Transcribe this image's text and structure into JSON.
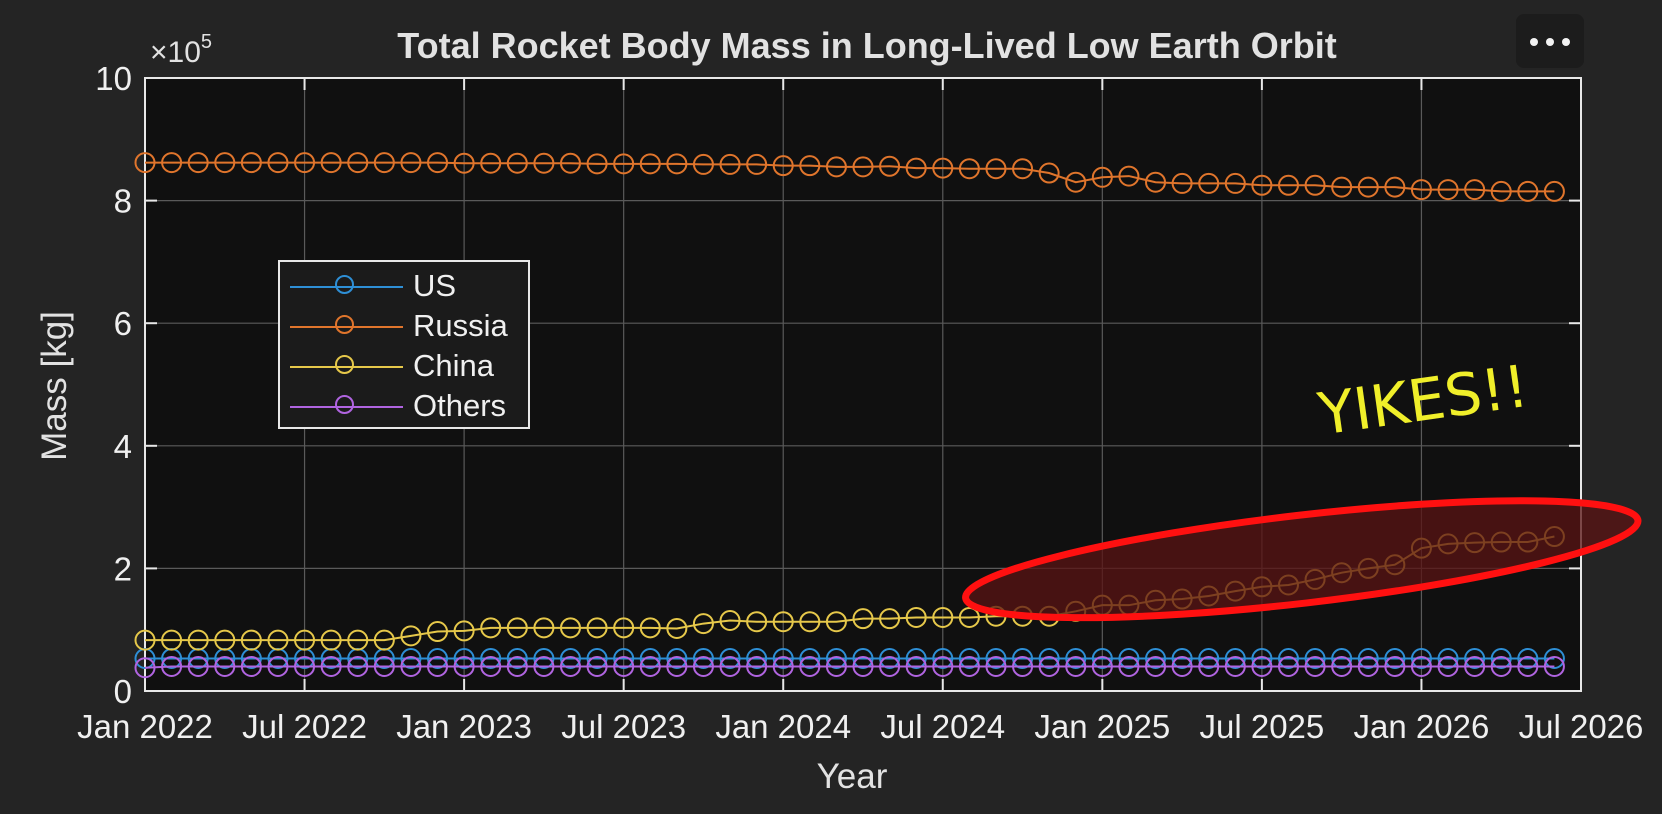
{
  "menu": {
    "icon": "more-horizontal-icon"
  },
  "chart_data": {
    "type": "line",
    "title": "Total Rocket Body Mass in Long-Lived Low Earth Orbit",
    "xlabel": "Year",
    "ylabel": "Mass [kg]",
    "y_exponent_label": "×10",
    "y_exponent_power": "5",
    "x_tick_labels": [
      "Jan 2022",
      "Jul 2022",
      "Jan 2023",
      "Jul 2023",
      "Jan 2024",
      "Jul 2024",
      "Jan 2025",
      "Jul 2025",
      "Jan 2026",
      "Jul 2026"
    ],
    "x_ticks": [
      "2022-01",
      "2022-07",
      "2023-01",
      "2023-07",
      "2024-01",
      "2024-07",
      "2025-01",
      "2025-07",
      "2026-01",
      "2026-07"
    ],
    "y_tick_labels": [
      "0",
      "2",
      "4",
      "6",
      "8",
      "10"
    ],
    "xlim": [
      "2022-01",
      "2026-07"
    ],
    "ylim": [
      0,
      1000000
    ],
    "grid": true,
    "legend_position": "upper-left",
    "colors": {
      "background": "#242424",
      "axes": "#101010",
      "grid": "#5a5a5a",
      "text": "#f0f0f0"
    },
    "x": [
      "2022-01",
      "2022-02",
      "2022-03",
      "2022-04",
      "2022-05",
      "2022-06",
      "2022-07",
      "2022-08",
      "2022-09",
      "2022-10",
      "2022-11",
      "2022-12",
      "2023-01",
      "2023-02",
      "2023-03",
      "2023-04",
      "2023-05",
      "2023-06",
      "2023-07",
      "2023-08",
      "2023-09",
      "2023-10",
      "2023-11",
      "2023-12",
      "2024-01",
      "2024-02",
      "2024-03",
      "2024-04",
      "2024-05",
      "2024-06",
      "2024-07",
      "2024-08",
      "2024-09",
      "2024-10",
      "2024-11",
      "2024-12",
      "2025-01",
      "2025-02",
      "2025-03",
      "2025-04",
      "2025-05",
      "2025-06",
      "2025-07",
      "2025-08",
      "2025-09",
      "2025-10",
      "2025-11",
      "2025-12",
      "2026-01",
      "2026-02",
      "2026-03",
      "2026-04",
      "2026-05",
      "2026-06"
    ],
    "series": [
      {
        "name": "US",
        "color": "#2e8fd6",
        "values": [
          53000,
          53000,
          53000,
          53000,
          53000,
          53000,
          53000,
          53000,
          53000,
          53000,
          53000,
          53000,
          53000,
          53000,
          53000,
          53000,
          53000,
          53000,
          53000,
          53000,
          53000,
          53000,
          53000,
          53000,
          53000,
          53000,
          53000,
          53000,
          53000,
          53000,
          53000,
          53000,
          53000,
          53000,
          53000,
          53000,
          53000,
          53000,
          53000,
          53000,
          53000,
          53000,
          53000,
          53000,
          53000,
          53000,
          53000,
          53000,
          53000,
          53000,
          53000,
          53000,
          53000,
          53000
        ]
      },
      {
        "name": "Russia",
        "color": "#e0752c",
        "values": [
          862000,
          862000,
          862000,
          862000,
          862000,
          862000,
          862000,
          862000,
          862000,
          862000,
          862000,
          862000,
          861000,
          861000,
          861000,
          861000,
          861000,
          860000,
          860000,
          860000,
          860000,
          859000,
          859000,
          859000,
          857000,
          857000,
          855000,
          855000,
          856000,
          853000,
          853000,
          852000,
          852000,
          852000,
          845000,
          830000,
          838000,
          840000,
          830000,
          828000,
          828000,
          828000,
          825000,
          825000,
          825000,
          822000,
          822000,
          822000,
          818000,
          818000,
          818000,
          815000,
          815000,
          815000
        ]
      },
      {
        "name": "China",
        "color": "#e6c84a",
        "values": [
          83000,
          83000,
          83000,
          83000,
          83000,
          83000,
          83000,
          83000,
          83000,
          83000,
          90000,
          97000,
          98000,
          103000,
          103000,
          103000,
          103000,
          103000,
          103000,
          103000,
          102000,
          110000,
          115000,
          113000,
          113000,
          113000,
          113000,
          118000,
          118000,
          120000,
          120000,
          120000,
          122000,
          122000,
          122000,
          130000,
          140000,
          140000,
          148000,
          150000,
          155000,
          163000,
          170000,
          173000,
          182000,
          193000,
          200000,
          206000,
          233000,
          240000,
          242000,
          243000,
          243000,
          252000
        ]
      },
      {
        "name": "Others",
        "color": "#b064e0",
        "values": [
          38000,
          40000,
          40000,
          40000,
          40000,
          40000,
          40000,
          40000,
          40000,
          40000,
          40000,
          40000,
          40000,
          40000,
          40000,
          40000,
          40000,
          40000,
          40000,
          40000,
          40000,
          40000,
          40000,
          40000,
          40000,
          40000,
          40000,
          40000,
          40000,
          40000,
          40000,
          40000,
          40000,
          40000,
          40000,
          40000,
          40000,
          40000,
          40000,
          40000,
          40000,
          40000,
          40000,
          40000,
          40000,
          40000,
          40000,
          40000,
          40000,
          40000,
          40000,
          40000,
          40000,
          40000
        ]
      }
    ],
    "annotation": {
      "text": "YIKES!!",
      "text_color": "#f0ef2a",
      "highlight_color": "#ff1010",
      "highlight_fill": "#5a1313",
      "x_range": [
        "2024-08",
        "2026-09"
      ],
      "y_range": [
        100000,
        330000
      ]
    }
  }
}
